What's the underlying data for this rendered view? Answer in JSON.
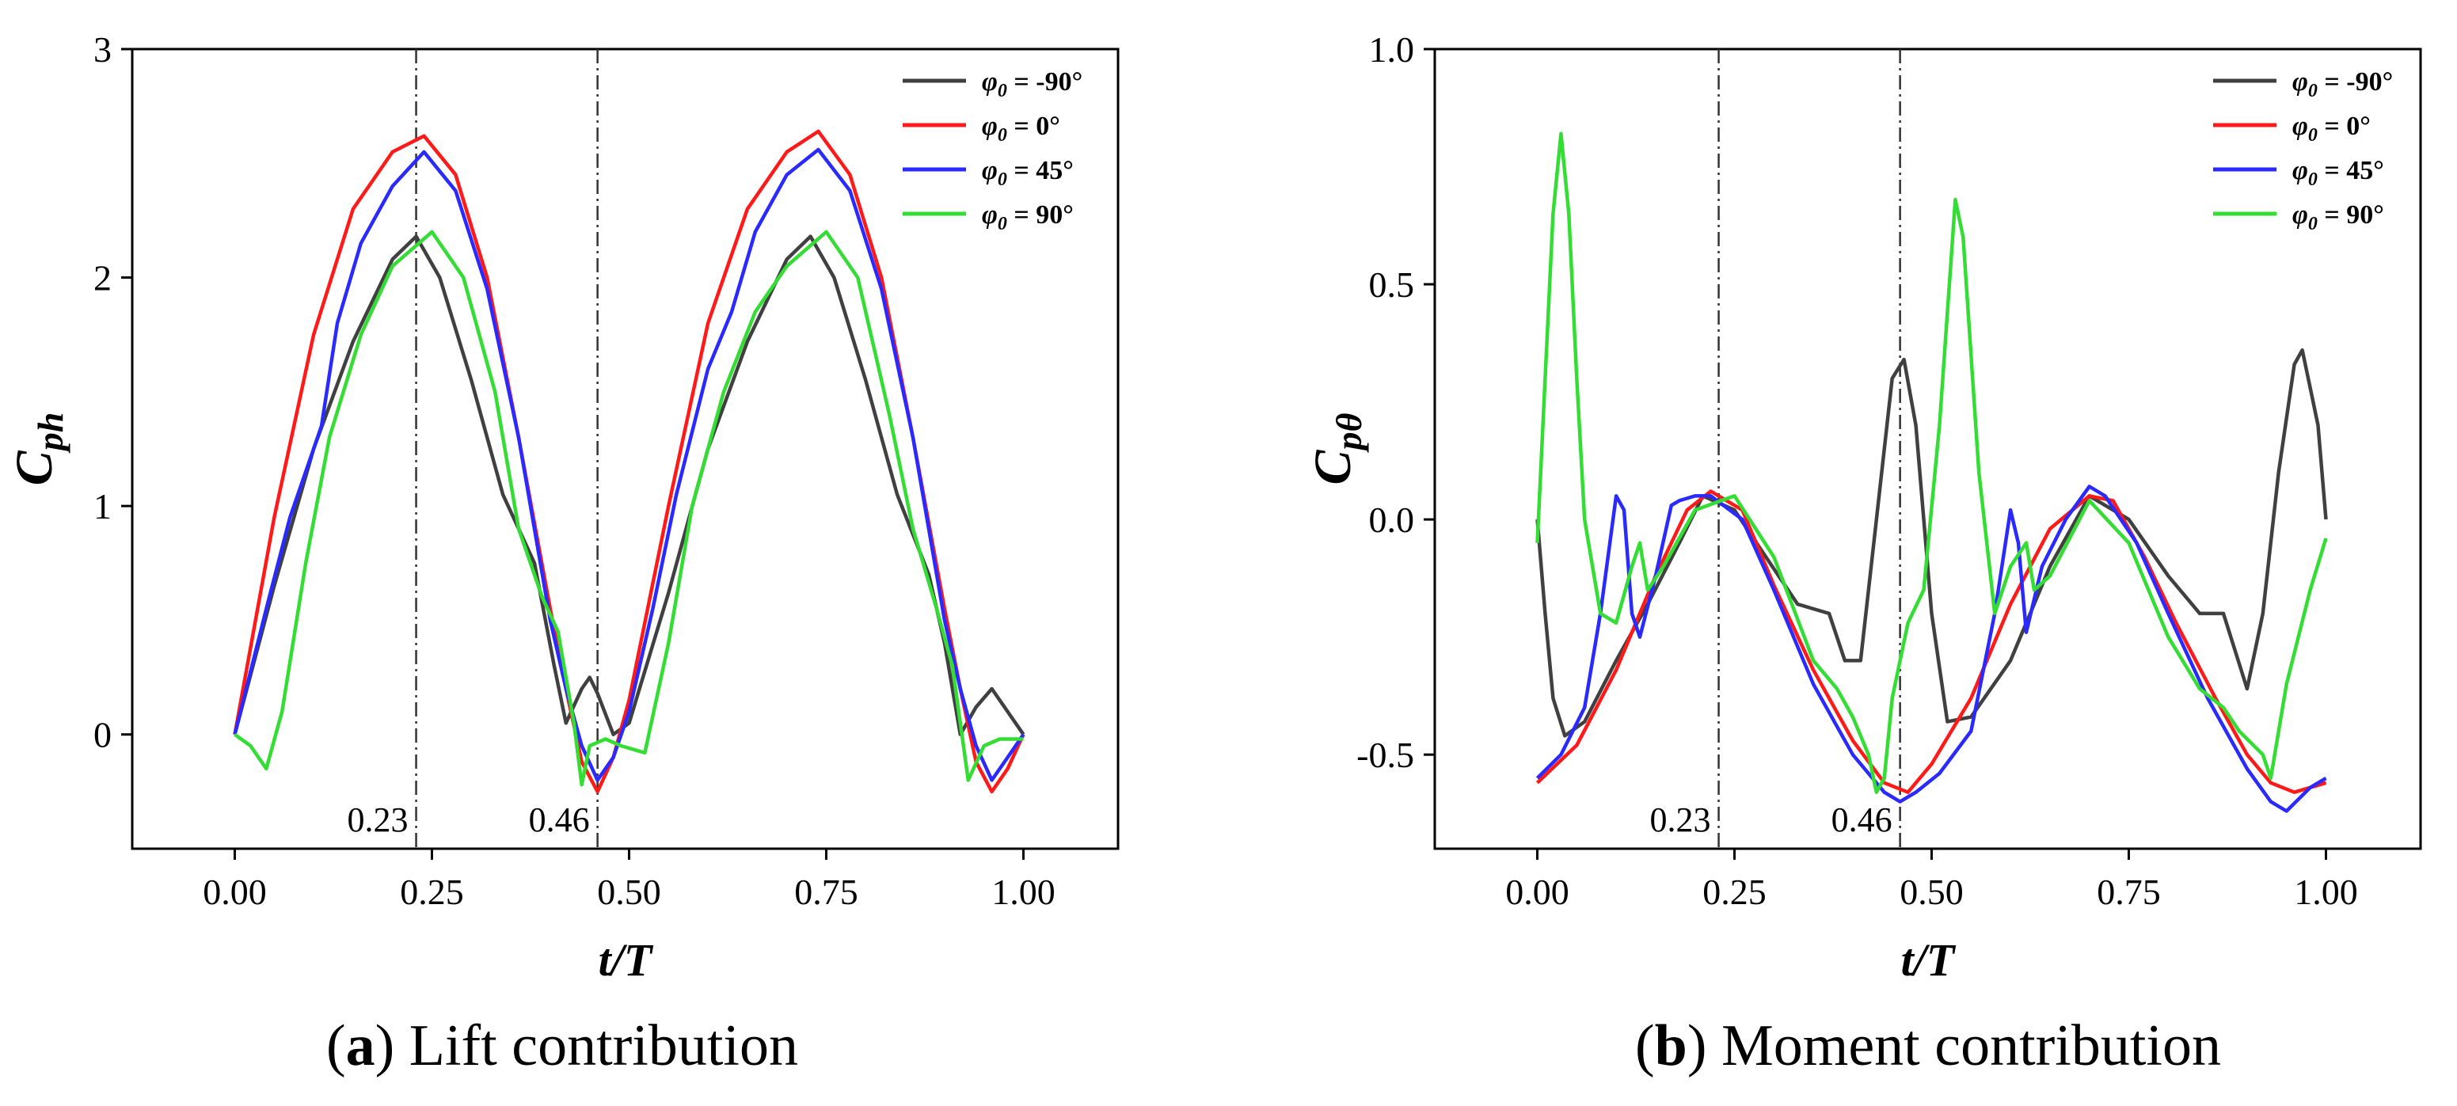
{
  "colors": {
    "phi_-90": "#404040",
    "phi_0": "#ff1a1a",
    "phi_45": "#2a2aff",
    "phi_90": "#33dd33",
    "axis": "#000000"
  },
  "chart_data": [
    {
      "id": "a",
      "type": "line",
      "caption_letter": "a",
      "caption_text": "Lift contribution",
      "xlabel": "t/T",
      "ylabel_main": "C",
      "ylabel_sub": "ph",
      "xlim": [
        -0.13,
        1.12
      ],
      "ylim": [
        -0.5,
        3.0
      ],
      "xticks": [
        0.0,
        0.25,
        0.5,
        0.75,
        1.0
      ],
      "xtick_labels": [
        "0.00",
        "0.25",
        "0.50",
        "0.75",
        "1.00"
      ],
      "yticks": [
        0,
        1,
        2,
        3
      ],
      "ytick_labels": [
        "0",
        "1",
        "2",
        "3"
      ],
      "vlines": [
        0.23,
        0.46
      ],
      "vline_labels": [
        "0.23",
        "0.46"
      ],
      "legend_position": "top-right",
      "series": [
        {
          "name": "-90°",
          "color_key": "phi_-90",
          "x": [
            0,
            0.05,
            0.1,
            0.15,
            0.2,
            0.23,
            0.26,
            0.3,
            0.34,
            0.38,
            0.405,
            0.42,
            0.44,
            0.45,
            0.46,
            0.48,
            0.5,
            0.55,
            0.6,
            0.65,
            0.7,
            0.73,
            0.76,
            0.8,
            0.84,
            0.88,
            0.9,
            0.92,
            0.94,
            0.96,
            0.98,
            1.0
          ],
          "y": [
            0,
            0.65,
            1.25,
            1.72,
            2.08,
            2.18,
            2.0,
            1.55,
            1.05,
            0.75,
            0.3,
            0.05,
            0.2,
            0.25,
            0.18,
            0.0,
            0.05,
            0.62,
            1.25,
            1.72,
            2.08,
            2.18,
            2.0,
            1.55,
            1.05,
            0.7,
            0.4,
            0.0,
            0.12,
            0.2,
            0.1,
            0.0
          ]
        },
        {
          "name": "0°",
          "color_key": "phi_0",
          "x": [
            0,
            0.05,
            0.1,
            0.15,
            0.2,
            0.24,
            0.28,
            0.32,
            0.36,
            0.4,
            0.42,
            0.44,
            0.46,
            0.48,
            0.5,
            0.55,
            0.6,
            0.65,
            0.7,
            0.74,
            0.78,
            0.82,
            0.86,
            0.9,
            0.92,
            0.94,
            0.96,
            0.98,
            1.0
          ],
          "y": [
            0,
            0.95,
            1.75,
            2.3,
            2.55,
            2.62,
            2.45,
            2.0,
            1.3,
            0.55,
            0.2,
            -0.12,
            -0.25,
            -0.1,
            0.15,
            1.0,
            1.8,
            2.3,
            2.55,
            2.64,
            2.45,
            2.0,
            1.3,
            0.55,
            0.2,
            -0.12,
            -0.25,
            -0.15,
            0.0
          ]
        },
        {
          "name": "45°",
          "color_key": "phi_45",
          "x": [
            0,
            0.04,
            0.07,
            0.09,
            0.11,
            0.13,
            0.16,
            0.2,
            0.24,
            0.28,
            0.32,
            0.36,
            0.4,
            0.42,
            0.44,
            0.46,
            0.48,
            0.5,
            0.53,
            0.56,
            0.6,
            0.63,
            0.66,
            0.7,
            0.74,
            0.78,
            0.82,
            0.86,
            0.9,
            0.92,
            0.94,
            0.96,
            0.98,
            1.0
          ],
          "y": [
            0,
            0.55,
            0.95,
            1.15,
            1.35,
            1.8,
            2.15,
            2.4,
            2.55,
            2.38,
            1.95,
            1.3,
            0.5,
            0.2,
            -0.05,
            -0.2,
            -0.1,
            0.1,
            0.55,
            1.05,
            1.6,
            1.85,
            2.2,
            2.45,
            2.56,
            2.38,
            1.95,
            1.3,
            0.5,
            0.2,
            -0.05,
            -0.2,
            -0.1,
            0.0
          ]
        },
        {
          "name": "90°",
          "color_key": "phi_90",
          "x": [
            0,
            0.02,
            0.04,
            0.06,
            0.09,
            0.12,
            0.16,
            0.2,
            0.25,
            0.29,
            0.33,
            0.36,
            0.39,
            0.41,
            0.43,
            0.44,
            0.45,
            0.47,
            0.49,
            0.52,
            0.55,
            0.58,
            0.62,
            0.66,
            0.7,
            0.75,
            0.79,
            0.83,
            0.86,
            0.89,
            0.91,
            0.92,
            0.93,
            0.95,
            0.97,
            1.0
          ],
          "y": [
            0,
            -0.05,
            -0.15,
            0.1,
            0.75,
            1.3,
            1.75,
            2.05,
            2.2,
            2.0,
            1.5,
            0.9,
            0.6,
            0.45,
            0.05,
            -0.22,
            -0.05,
            -0.02,
            -0.05,
            -0.08,
            0.4,
            1.0,
            1.5,
            1.85,
            2.05,
            2.2,
            2.0,
            1.4,
            0.9,
            0.55,
            0.3,
            0.05,
            -0.2,
            -0.05,
            -0.02,
            -0.02
          ]
        }
      ]
    },
    {
      "id": "b",
      "type": "line",
      "caption_letter": "b",
      "caption_text": "Moment contribution",
      "xlabel": "t/T",
      "ylabel_main": "C",
      "ylabel_sub": "pθ",
      "xlim": [
        -0.13,
        1.12
      ],
      "ylim": [
        -0.7,
        1.0
      ],
      "xticks": [
        0.0,
        0.25,
        0.5,
        0.75,
        1.0
      ],
      "xtick_labels": [
        "0.00",
        "0.25",
        "0.50",
        "0.75",
        "1.00"
      ],
      "yticks": [
        -0.5,
        0.0,
        0.5,
        1.0
      ],
      "ytick_labels": [
        "-0.5",
        "0.0",
        "0.5",
        "1.0"
      ],
      "vlines": [
        0.23,
        0.46
      ],
      "vline_labels": [
        "0.23",
        "0.46"
      ],
      "legend_position": "top-right",
      "series": [
        {
          "name": "-90°",
          "color_key": "phi_-90",
          "x": [
            0,
            0.01,
            0.02,
            0.035,
            0.06,
            0.1,
            0.14,
            0.18,
            0.21,
            0.25,
            0.29,
            0.33,
            0.37,
            0.39,
            0.41,
            0.43,
            0.45,
            0.465,
            0.48,
            0.5,
            0.52,
            0.55,
            0.6,
            0.65,
            0.7,
            0.75,
            0.8,
            0.84,
            0.87,
            0.9,
            0.92,
            0.94,
            0.96,
            0.97,
            0.98,
            0.99,
            1.0
          ],
          "y": [
            0,
            -0.2,
            -0.38,
            -0.46,
            -0.43,
            -0.3,
            -0.18,
            -0.05,
            0.05,
            0.02,
            -0.08,
            -0.18,
            -0.2,
            -0.3,
            -0.3,
            0.0,
            0.3,
            0.34,
            0.2,
            -0.2,
            -0.43,
            -0.42,
            -0.3,
            -0.1,
            0.05,
            0.0,
            -0.12,
            -0.2,
            -0.2,
            -0.36,
            -0.2,
            0.1,
            0.33,
            0.36,
            0.28,
            0.2,
            0.0
          ]
        },
        {
          "name": "0°",
          "color_key": "phi_0",
          "x": [
            0,
            0.05,
            0.1,
            0.15,
            0.19,
            0.22,
            0.26,
            0.3,
            0.35,
            0.4,
            0.44,
            0.47,
            0.5,
            0.55,
            0.6,
            0.65,
            0.7,
            0.73,
            0.77,
            0.81,
            0.86,
            0.9,
            0.93,
            0.96,
            1.0
          ],
          "y": [
            -0.56,
            -0.48,
            -0.32,
            -0.12,
            0.02,
            0.06,
            0.02,
            -0.14,
            -0.32,
            -0.47,
            -0.56,
            -0.58,
            -0.52,
            -0.38,
            -0.18,
            -0.02,
            0.05,
            0.04,
            -0.08,
            -0.22,
            -0.38,
            -0.5,
            -0.56,
            -0.58,
            -0.56
          ]
        },
        {
          "name": "45°",
          "color_key": "phi_45",
          "x": [
            0,
            0.03,
            0.06,
            0.08,
            0.1,
            0.11,
            0.12,
            0.13,
            0.15,
            0.17,
            0.18,
            0.2,
            0.22,
            0.26,
            0.3,
            0.35,
            0.4,
            0.44,
            0.46,
            0.48,
            0.51,
            0.55,
            0.58,
            0.6,
            0.61,
            0.62,
            0.64,
            0.67,
            0.7,
            0.72,
            0.76,
            0.8,
            0.85,
            0.9,
            0.93,
            0.95,
            0.98,
            1.0
          ],
          "y": [
            -0.55,
            -0.5,
            -0.4,
            -0.2,
            0.05,
            0.02,
            -0.2,
            -0.25,
            -0.12,
            0.03,
            0.04,
            0.05,
            0.05,
            0.0,
            -0.15,
            -0.35,
            -0.5,
            -0.58,
            -0.6,
            -0.58,
            -0.54,
            -0.45,
            -0.2,
            0.02,
            -0.05,
            -0.24,
            -0.1,
            0.0,
            0.07,
            0.05,
            -0.05,
            -0.2,
            -0.38,
            -0.53,
            -0.6,
            -0.62,
            -0.57,
            -0.55
          ]
        },
        {
          "name": "90°",
          "color_key": "phi_90",
          "x": [
            0,
            0.01,
            0.02,
            0.03,
            0.04,
            0.05,
            0.06,
            0.07,
            0.08,
            0.1,
            0.12,
            0.13,
            0.14,
            0.16,
            0.2,
            0.25,
            0.3,
            0.35,
            0.38,
            0.4,
            0.42,
            0.43,
            0.44,
            0.45,
            0.47,
            0.49,
            0.51,
            0.53,
            0.54,
            0.56,
            0.58,
            0.6,
            0.62,
            0.63,
            0.65,
            0.7,
            0.75,
            0.8,
            0.84,
            0.87,
            0.89,
            0.92,
            0.93,
            0.95,
            0.98,
            1.0
          ],
          "y": [
            -0.05,
            0.3,
            0.65,
            0.82,
            0.65,
            0.3,
            0.0,
            -0.1,
            -0.2,
            -0.22,
            -0.1,
            -0.05,
            -0.15,
            -0.1,
            0.02,
            0.05,
            -0.08,
            -0.3,
            -0.36,
            -0.42,
            -0.5,
            -0.58,
            -0.55,
            -0.38,
            -0.22,
            -0.15,
            0.2,
            0.68,
            0.6,
            0.1,
            -0.2,
            -0.1,
            -0.05,
            -0.15,
            -0.12,
            0.04,
            -0.05,
            -0.25,
            -0.36,
            -0.4,
            -0.45,
            -0.5,
            -0.55,
            -0.35,
            -0.15,
            -0.04
          ]
        }
      ]
    }
  ]
}
